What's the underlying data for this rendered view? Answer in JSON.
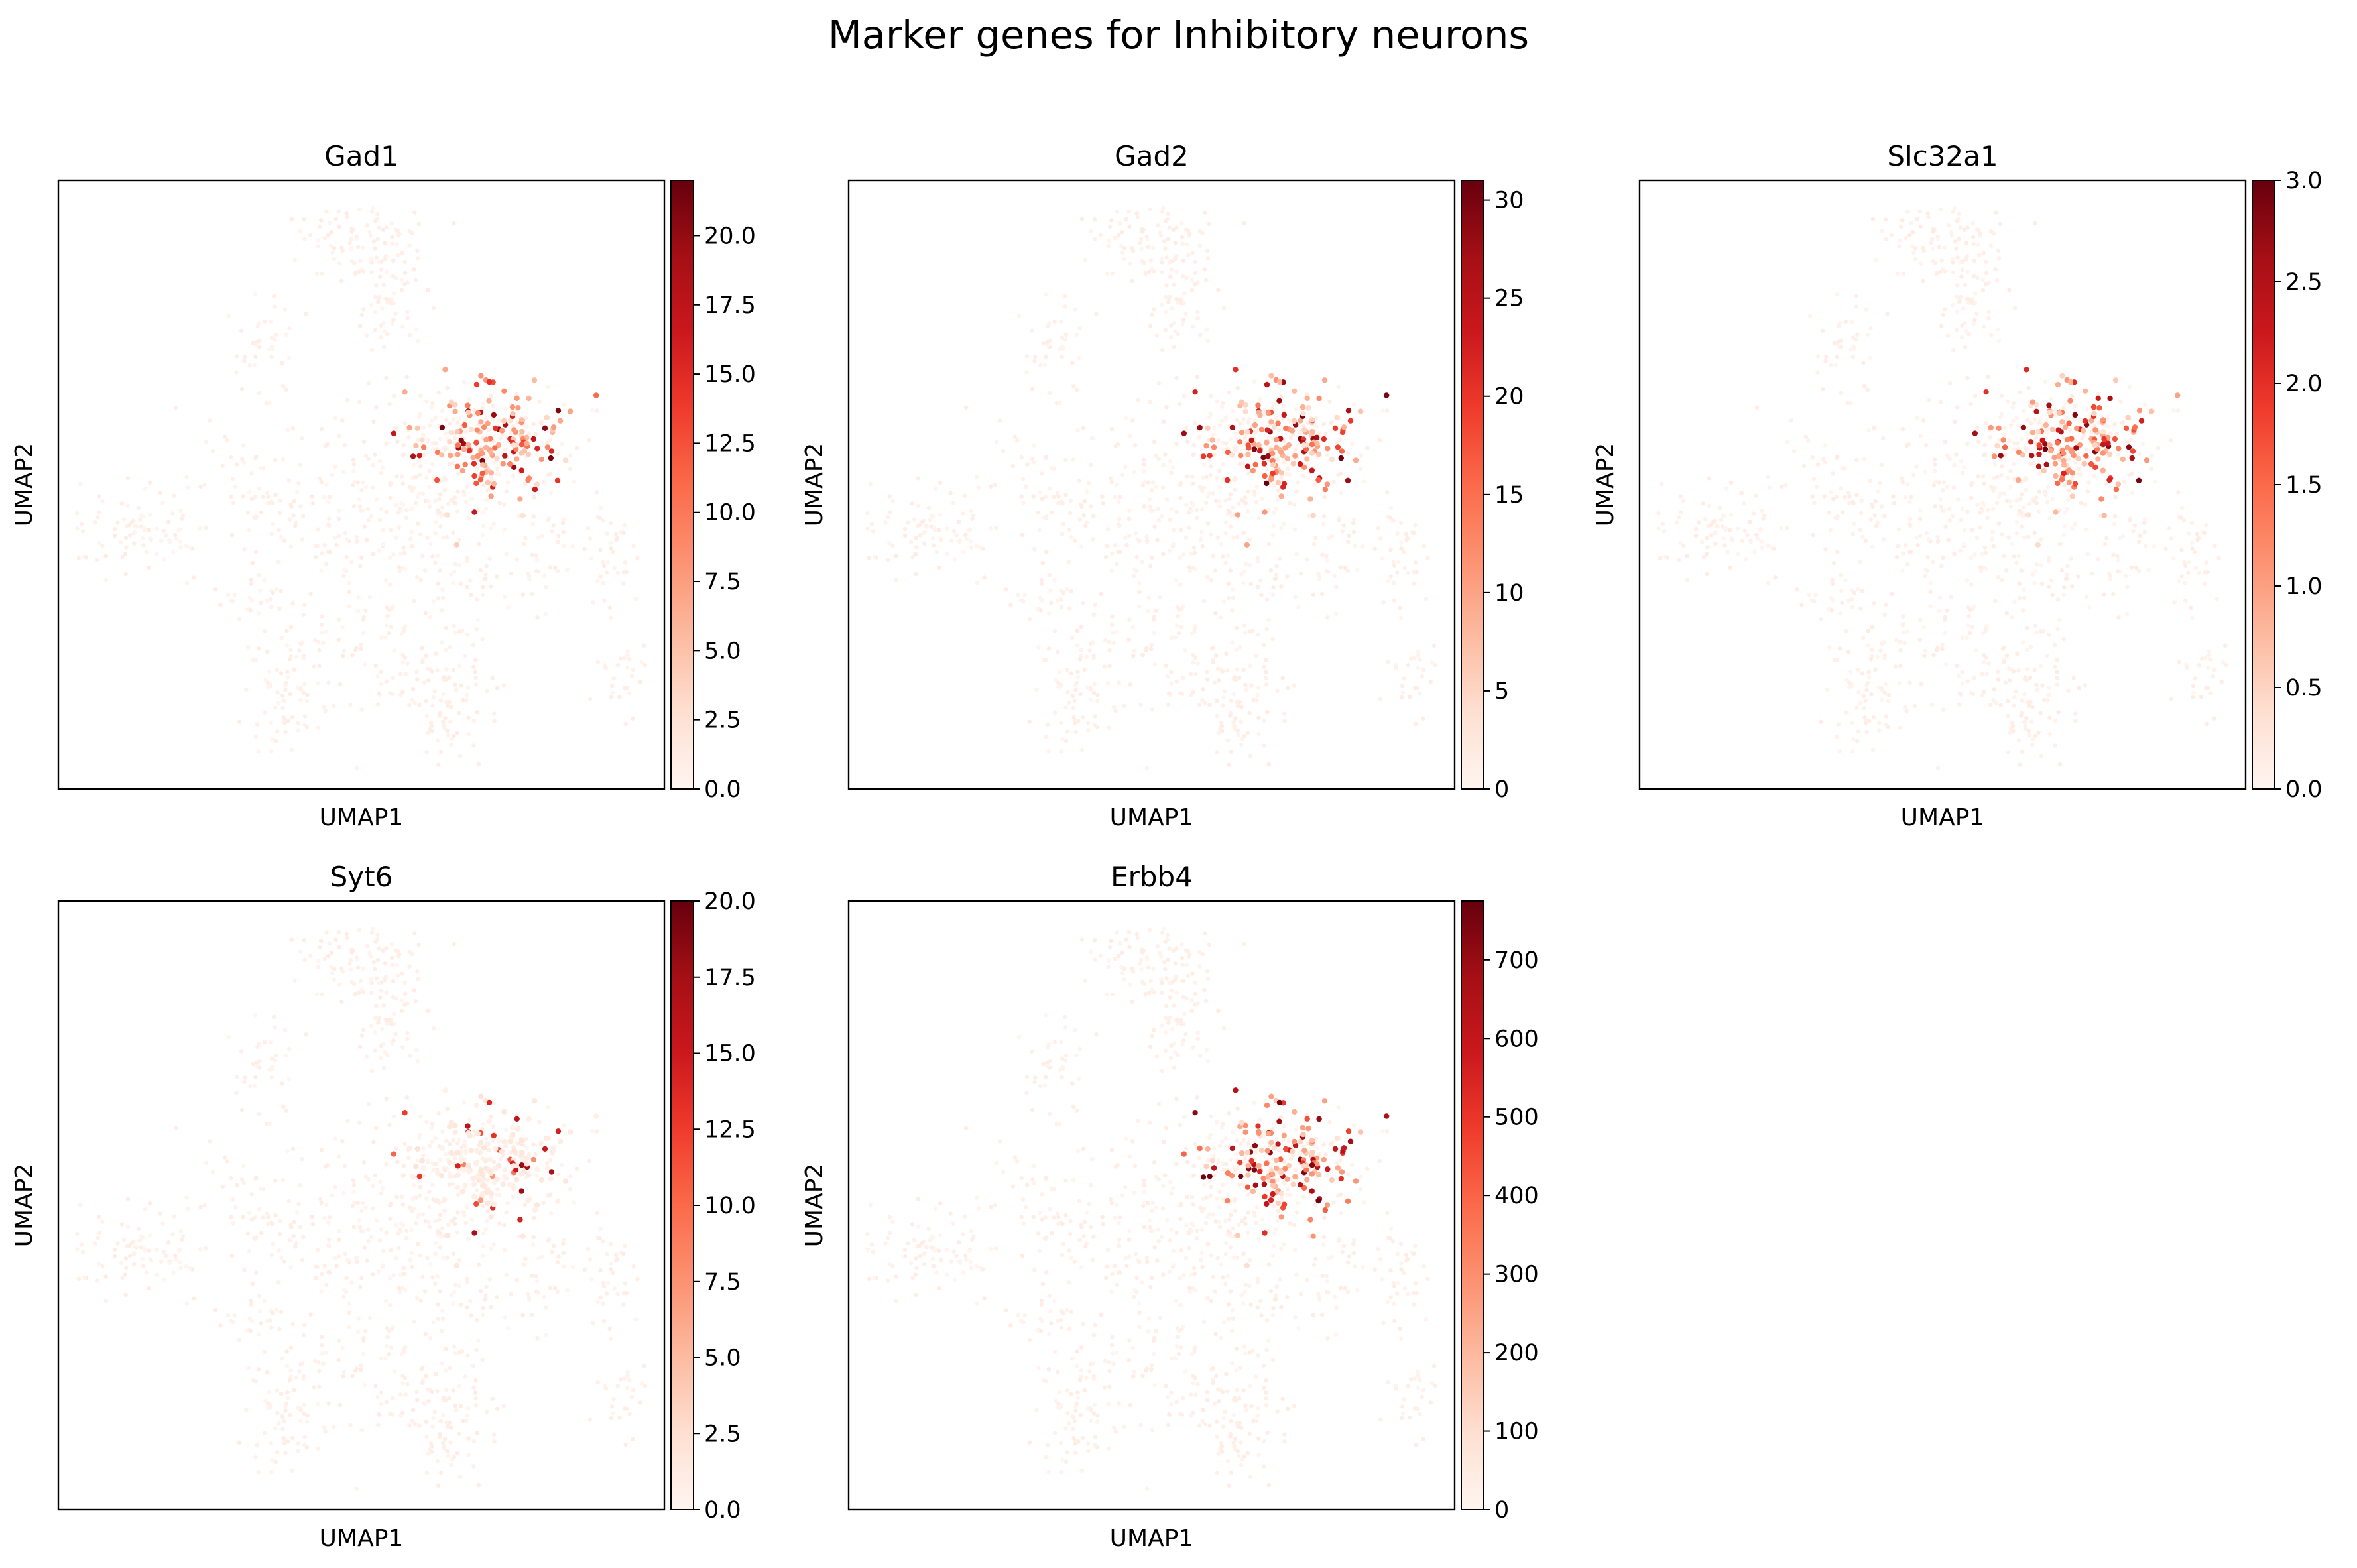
{
  "figure": {
    "title": "Marker genes for Inhibitory neurons"
  },
  "colormap": {
    "name": "Reds",
    "stops": [
      "#fff5f0",
      "#fee0d2",
      "#fcbba1",
      "#fc9272",
      "#fb6a4a",
      "#ef3b2c",
      "#cb181d",
      "#a50f15",
      "#67000d"
    ]
  },
  "chart_data": [
    {
      "type": "scatter",
      "title": "Gad1",
      "xlabel": "UMAP1",
      "ylabel": "UMAP2",
      "colorbar": {
        "min": 0,
        "max": 22,
        "ticks": [
          "0.0",
          "2.5",
          "5.0",
          "7.5",
          "10.0",
          "12.5",
          "15.0",
          "17.5",
          "20.0"
        ]
      },
      "hotspot": {
        "region": "right-center inhibitory cluster",
        "peak_value": 22
      }
    },
    {
      "type": "scatter",
      "title": "Gad2",
      "xlabel": "UMAP1",
      "ylabel": "UMAP2",
      "colorbar": {
        "min": 0,
        "max": 31,
        "ticks": [
          "0",
          "5",
          "10",
          "15",
          "20",
          "25",
          "30"
        ]
      },
      "hotspot": {
        "region": "right-center inhibitory cluster",
        "peak_value": 31
      }
    },
    {
      "type": "scatter",
      "title": "Slc32a1",
      "xlabel": "UMAP1",
      "ylabel": "UMAP2",
      "colorbar": {
        "min": 0,
        "max": 3,
        "ticks": [
          "0.0",
          "0.5",
          "1.0",
          "1.5",
          "2.0",
          "2.5",
          "3.0"
        ]
      },
      "hotspot": {
        "region": "right-center inhibitory cluster, sparse elsewhere",
        "peak_value": 3
      }
    },
    {
      "type": "scatter",
      "title": "Syt6",
      "xlabel": "UMAP1",
      "ylabel": "UMAP2",
      "colorbar": {
        "min": 0,
        "max": 20,
        "ticks": [
          "0.0",
          "2.5",
          "5.0",
          "7.5",
          "10.0",
          "12.5",
          "15.0",
          "17.5",
          "20.0"
        ]
      },
      "hotspot": {
        "region": "few cells in right-center cluster",
        "peak_value": 20
      }
    },
    {
      "type": "scatter",
      "title": "Erbb4",
      "xlabel": "UMAP1",
      "ylabel": "UMAP2",
      "colorbar": {
        "min": 0,
        "max": 775,
        "ticks": [
          "0",
          "100",
          "200",
          "300",
          "400",
          "500",
          "600",
          "700"
        ]
      },
      "hotspot": {
        "region": "right-center inhibitory cluster",
        "peak_value": 775
      }
    }
  ]
}
